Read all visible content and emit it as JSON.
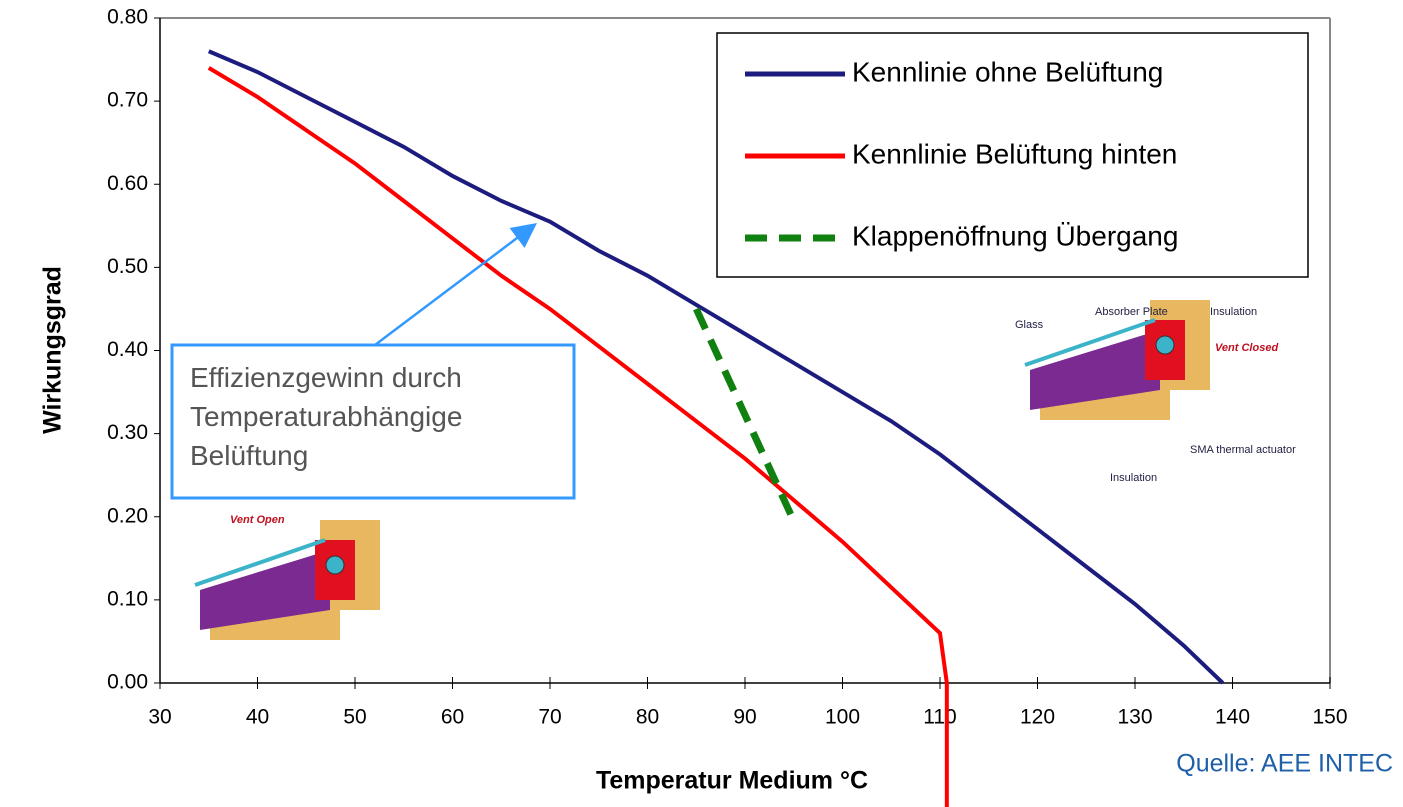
{
  "chart_data": {
    "type": "line",
    "xlabel": "Temperatur Medium °C",
    "ylabel": "Wirkungsgrad",
    "xlim": [
      30,
      150
    ],
    "ylim": [
      0,
      0.8
    ],
    "xticks": [
      30,
      40,
      50,
      60,
      70,
      80,
      90,
      100,
      110,
      120,
      130,
      140,
      150
    ],
    "yticks": [
      {
        "value": 0,
        "label": "0.00"
      },
      {
        "value": 0.1,
        "label": "0.10"
      },
      {
        "value": 0.2,
        "label": "0.20"
      },
      {
        "value": 0.3,
        "label": "0.30"
      },
      {
        "value": 0.4,
        "label": "0.40"
      },
      {
        "value": 0.5,
        "label": "0.50"
      },
      {
        "value": 0.6,
        "label": "0.60"
      },
      {
        "value": 0.7,
        "label": "0.70"
      },
      {
        "value": 0.8,
        "label": "0.80"
      }
    ],
    "series": [
      {
        "name": "Kennlinie ohne Belüftung",
        "color": "#1c1c7e",
        "dashed": false,
        "x": [
          35,
          40,
          45,
          50,
          55,
          60,
          65,
          70,
          75,
          80,
          85,
          90,
          95,
          100,
          105,
          110,
          115,
          120,
          125,
          130,
          135,
          139
        ],
        "values": [
          0.76,
          0.735,
          0.705,
          0.675,
          0.645,
          0.61,
          0.58,
          0.555,
          0.52,
          0.49,
          0.455,
          0.42,
          0.385,
          0.35,
          0.315,
          0.275,
          0.23,
          0.185,
          0.14,
          0.095,
          0.045,
          0
        ]
      },
      {
        "name": "Kennlinie Belüftung hinten",
        "color": "#ff0000",
        "dashed": false,
        "x": [
          35,
          40,
          45,
          50,
          55,
          60,
          65,
          70,
          75,
          80,
          85,
          90,
          95,
          100,
          105,
          110,
          110.7
        ],
        "values": [
          0.74,
          0.705,
          0.665,
          0.625,
          0.58,
          0.535,
          0.49,
          0.45,
          0.405,
          0.36,
          0.315,
          0.27,
          0.22,
          0.17,
          0.115,
          0.06,
          0
        ]
      },
      {
        "name": "Klappenöffnung Übergang",
        "color": "#108010",
        "dashed": true,
        "x": [
          85,
          95
        ],
        "values": [
          0.45,
          0.195
        ]
      }
    ],
    "legend": "upper right",
    "annotation": "Effizienzgewinn durch Temperaturabhängige Belüftung",
    "source": "Quelle: AEE INTEC",
    "illustrations": [
      {
        "labels": [
          "Absorber Plate",
          "Glass",
          "Insulation",
          "Vent Closed",
          "SMA thermal actuator",
          "Insulation"
        ]
      },
      {
        "labels": [
          "Vent Open"
        ]
      }
    ]
  }
}
